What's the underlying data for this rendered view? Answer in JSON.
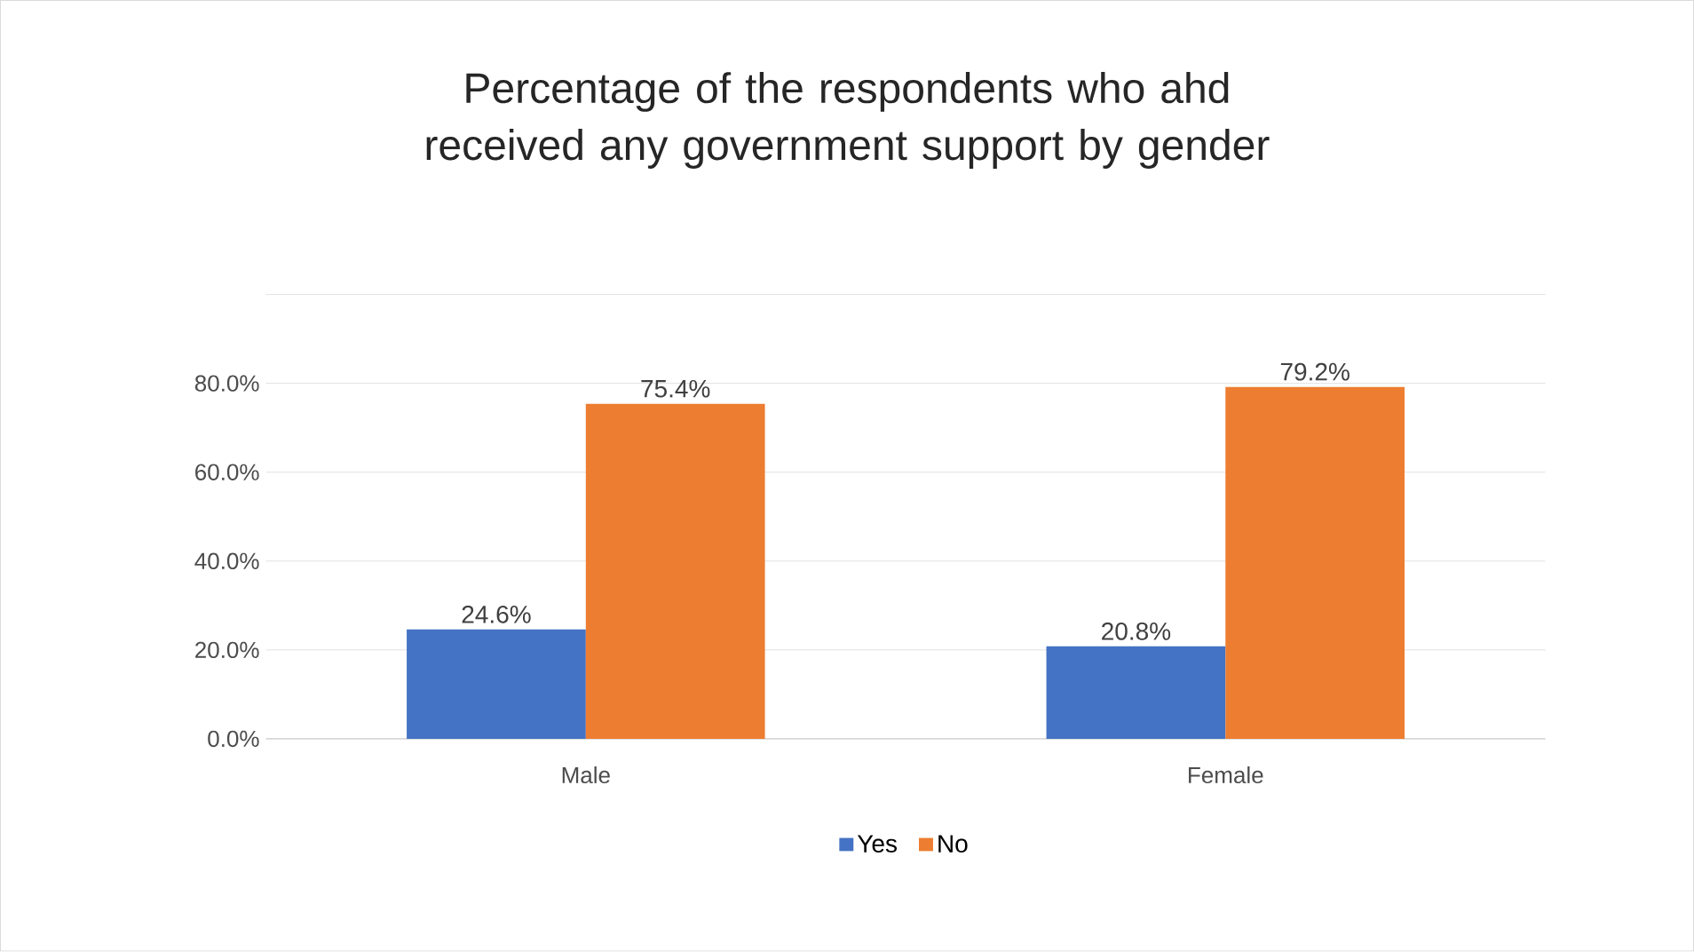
{
  "chart_data": {
    "type": "bar",
    "title": "Percentage of the respondents who ahd received any government support by gender",
    "categories": [
      "Male",
      "Female"
    ],
    "series": [
      {
        "name": "Yes",
        "color": "#4472c4",
        "values": [
          24.6,
          20.8
        ],
        "value_labels": [
          "24.6%",
          "20.8%"
        ]
      },
      {
        "name": "No",
        "color": "#ed7d31",
        "values": [
          75.4,
          79.2
        ],
        "value_labels": [
          "75.4%",
          "79.2%"
        ]
      }
    ],
    "ylim": [
      0,
      100
    ],
    "yticks": [
      {
        "value": 0,
        "label": "0.0%"
      },
      {
        "value": 20,
        "label": "20.0%"
      },
      {
        "value": 40,
        "label": "40.0%"
      },
      {
        "value": 60,
        "label": "60.0%"
      },
      {
        "value": 80,
        "label": "80.0%"
      },
      {
        "value": 100,
        "label": null
      }
    ],
    "grid": "y",
    "legend": "bottom"
  }
}
